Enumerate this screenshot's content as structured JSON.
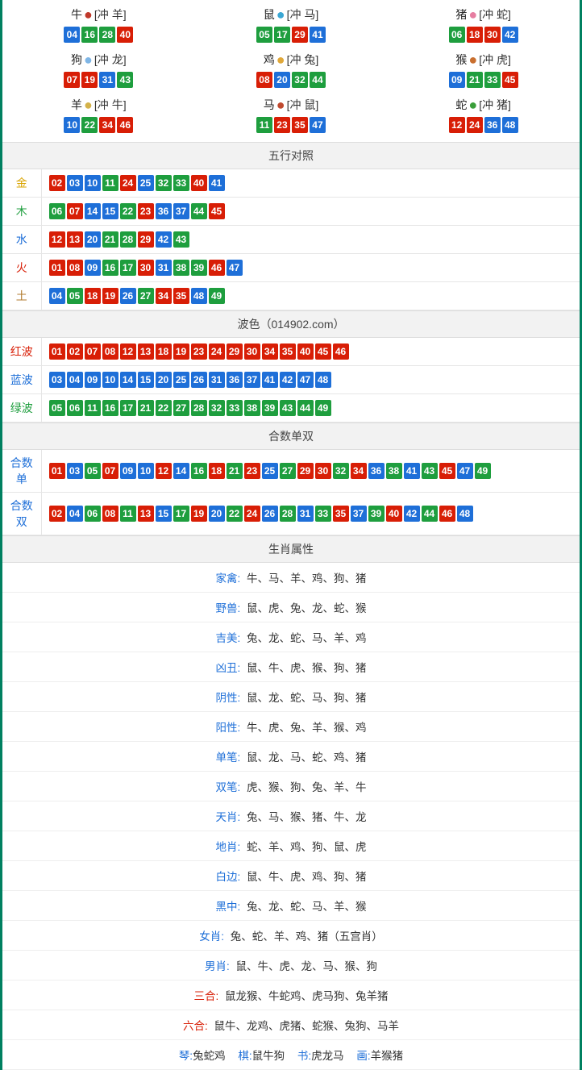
{
  "colors": {
    "red": "#d81e06",
    "blue": "#1e6fd8",
    "green": "#1e9e3e",
    "frame": "#008060",
    "header_bg": "#f2f2f2",
    "row_border": "#e6e6e6",
    "text": "#333333"
  },
  "element_label_colors": {
    "金": "#d9a400",
    "木": "#1e9e3e",
    "水": "#1e6fd8",
    "火": "#d81e06",
    "土": "#b07a2e"
  },
  "wave_label_colors": {
    "红波": "#d81e06",
    "蓝波": "#1e6fd8",
    "绿波": "#1e9e3e"
  },
  "sum_label_color": "#1e6fd8",
  "number_colors": {
    "red": [
      1,
      2,
      7,
      8,
      12,
      13,
      18,
      19,
      23,
      24,
      29,
      30,
      34,
      35,
      40,
      45,
      46
    ],
    "blue": [
      3,
      4,
      9,
      10,
      14,
      15,
      20,
      25,
      26,
      31,
      36,
      37,
      41,
      42,
      47,
      48
    ],
    "green": [
      5,
      6,
      11,
      16,
      17,
      21,
      22,
      27,
      28,
      32,
      33,
      38,
      39,
      43,
      44,
      49
    ]
  },
  "zodiac": [
    {
      "name": "牛",
      "icon_color": "#c0392b",
      "conflict": "冲 羊",
      "nums": [
        4,
        16,
        28,
        40
      ]
    },
    {
      "name": "鼠",
      "icon_color": "#3ba7d4",
      "conflict": "冲 马",
      "nums": [
        5,
        17,
        29,
        41
      ]
    },
    {
      "name": "猪",
      "icon_color": "#e67ea1",
      "conflict": "冲 蛇",
      "nums": [
        6,
        18,
        30,
        42
      ]
    },
    {
      "name": "狗",
      "icon_color": "#7fb6e6",
      "conflict": "冲 龙",
      "nums": [
        7,
        19,
        31,
        43
      ]
    },
    {
      "name": "鸡",
      "icon_color": "#e0a83a",
      "conflict": "冲 兔",
      "nums": [
        8,
        20,
        32,
        44
      ]
    },
    {
      "name": "猴",
      "icon_color": "#c96f2f",
      "conflict": "冲 虎",
      "nums": [
        9,
        21,
        33,
        45
      ]
    },
    {
      "name": "羊",
      "icon_color": "#d4b24a",
      "conflict": "冲 牛",
      "nums": [
        10,
        22,
        34,
        46
      ]
    },
    {
      "name": "马",
      "icon_color": "#c04a2f",
      "conflict": "冲 鼠",
      "nums": [
        11,
        23,
        35,
        47
      ]
    },
    {
      "name": "蛇",
      "icon_color": "#3a9e3a",
      "conflict": "冲 猪",
      "nums": [
        12,
        24,
        36,
        48
      ]
    }
  ],
  "sections": {
    "elements_title": "五行对照",
    "wave_title": "波色（014902.com）",
    "sum_title": "合数单双",
    "attr_title": "生肖属性"
  },
  "elements": [
    {
      "label": "金",
      "nums": [
        2,
        3,
        10,
        11,
        24,
        25,
        32,
        33,
        40,
        41
      ]
    },
    {
      "label": "木",
      "nums": [
        6,
        7,
        14,
        15,
        22,
        23,
        36,
        37,
        44,
        45
      ]
    },
    {
      "label": "水",
      "nums": [
        12,
        13,
        20,
        21,
        28,
        29,
        42,
        43
      ]
    },
    {
      "label": "火",
      "nums": [
        1,
        8,
        9,
        16,
        17,
        30,
        31,
        38,
        39,
        46,
        47
      ]
    },
    {
      "label": "土",
      "nums": [
        4,
        5,
        18,
        19,
        26,
        27,
        34,
        35,
        48,
        49
      ]
    }
  ],
  "waves": [
    {
      "label": "红波",
      "nums": [
        1,
        2,
        7,
        8,
        12,
        13,
        18,
        19,
        23,
        24,
        29,
        30,
        34,
        35,
        40,
        45,
        46
      ]
    },
    {
      "label": "蓝波",
      "nums": [
        3,
        4,
        9,
        10,
        14,
        15,
        20,
        25,
        26,
        31,
        36,
        37,
        41,
        42,
        47,
        48
      ]
    },
    {
      "label": "绿波",
      "nums": [
        5,
        6,
        11,
        16,
        17,
        21,
        22,
        27,
        28,
        32,
        33,
        38,
        39,
        43,
        44,
        49
      ]
    }
  ],
  "sums": [
    {
      "label": "合数单",
      "nums": [
        1,
        3,
        5,
        7,
        9,
        10,
        12,
        14,
        16,
        18,
        21,
        23,
        25,
        27,
        29,
        30,
        32,
        34,
        36,
        38,
        41,
        43,
        45,
        47,
        49
      ]
    },
    {
      "label": "合数双",
      "nums": [
        2,
        4,
        6,
        8,
        11,
        13,
        15,
        17,
        19,
        20,
        22,
        24,
        26,
        28,
        31,
        33,
        35,
        37,
        39,
        40,
        42,
        44,
        46,
        48
      ]
    }
  ],
  "attributes": [
    {
      "label": "家禽",
      "color": "#1e6fd8",
      "value": "牛、马、羊、鸡、狗、猪"
    },
    {
      "label": "野兽",
      "color": "#1e6fd8",
      "value": "鼠、虎、兔、龙、蛇、猴"
    },
    {
      "label": "吉美",
      "color": "#1e6fd8",
      "value": "兔、龙、蛇、马、羊、鸡"
    },
    {
      "label": "凶丑",
      "color": "#1e6fd8",
      "value": "鼠、牛、虎、猴、狗、猪"
    },
    {
      "label": "阴性",
      "color": "#1e6fd8",
      "value": "鼠、龙、蛇、马、狗、猪"
    },
    {
      "label": "阳性",
      "color": "#1e6fd8",
      "value": "牛、虎、兔、羊、猴、鸡"
    },
    {
      "label": "单笔",
      "color": "#1e6fd8",
      "value": "鼠、龙、马、蛇、鸡、猪"
    },
    {
      "label": "双笔",
      "color": "#1e6fd8",
      "value": "虎、猴、狗、兔、羊、牛"
    },
    {
      "label": "天肖",
      "color": "#1e6fd8",
      "value": "兔、马、猴、猪、牛、龙"
    },
    {
      "label": "地肖",
      "color": "#1e6fd8",
      "value": "蛇、羊、鸡、狗、鼠、虎"
    },
    {
      "label": "白边",
      "color": "#1e6fd8",
      "value": "鼠、牛、虎、鸡、狗、猪"
    },
    {
      "label": "黑中",
      "color": "#1e6fd8",
      "value": "兔、龙、蛇、马、羊、猴"
    },
    {
      "label": "女肖",
      "color": "#1e6fd8",
      "value": "兔、蛇、羊、鸡、猪（五宫肖）"
    },
    {
      "label": "男肖",
      "color": "#1e6fd8",
      "value": "鼠、牛、虎、龙、马、猴、狗"
    },
    {
      "label": "三合",
      "color": "#d81e06",
      "value": "鼠龙猴、牛蛇鸡、虎马狗、兔羊猪"
    },
    {
      "label": "六合",
      "color": "#d81e06",
      "value": "鼠牛、龙鸡、虎猪、蛇猴、兔狗、马羊"
    }
  ],
  "bottom_row": [
    {
      "label": "琴",
      "color": "#1e6fd8",
      "value": "兔蛇鸡"
    },
    {
      "label": "棋",
      "color": "#1e6fd8",
      "value": "鼠牛狗"
    },
    {
      "label": "书",
      "color": "#1e6fd8",
      "value": "虎龙马"
    },
    {
      "label": "画",
      "color": "#1e6fd8",
      "value": "羊猴猪"
    }
  ]
}
